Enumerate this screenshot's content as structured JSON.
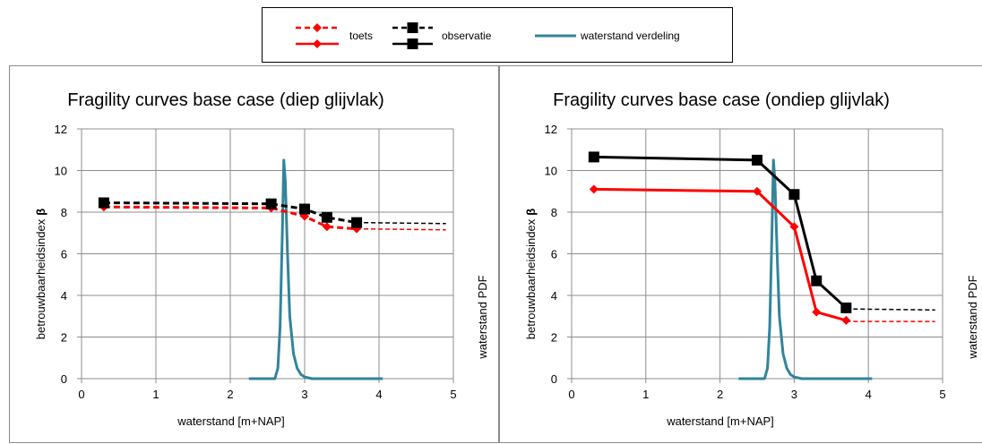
{
  "legend": {
    "items": [
      {
        "label": "toets",
        "color": "#ff0000",
        "marker": "diamond"
      },
      {
        "label": "observatie",
        "color": "#000000",
        "marker": "square"
      },
      {
        "label": "waterstand verdeling",
        "color": "#31849b",
        "marker": "none"
      }
    ]
  },
  "chart_data": [
    {
      "type": "line",
      "title": "Fragility curves base case (diep glijvlak)",
      "xlabel": "waterstand [m+NAP]",
      "ylabel": "betrouwbaarheidsindex",
      "ylabel_symbol": "β",
      "y2label": "waterstand PDF",
      "xlim": [
        0,
        5
      ],
      "ylim": [
        0,
        12
      ],
      "xticks": [
        "0",
        "1",
        "2",
        "3",
        "4",
        "5"
      ],
      "yticks": [
        "0",
        "2",
        "4",
        "6",
        "8",
        "10",
        "12"
      ],
      "grid": true,
      "series": [
        {
          "name": "toets",
          "color": "#ff0000",
          "style": "dashed",
          "marker": "diamond",
          "x": [
            0.3,
            2.55,
            3.0,
            3.3,
            3.7
          ],
          "y": [
            8.25,
            8.2,
            7.8,
            7.3,
            7.2
          ],
          "extension": {
            "x": [
              3.7,
              4.9
            ],
            "y": [
              7.2,
              7.15
            ]
          }
        },
        {
          "name": "observatie",
          "color": "#000000",
          "style": "dashed",
          "marker": "square",
          "x": [
            0.3,
            2.55,
            3.0,
            3.3,
            3.7
          ],
          "y": [
            8.45,
            8.4,
            8.15,
            7.75,
            7.5
          ],
          "extension": {
            "x": [
              3.7,
              4.9
            ],
            "y": [
              7.5,
              7.45
            ]
          }
        },
        {
          "name": "waterstand verdeling",
          "color": "#31849b",
          "style": "solid",
          "marker": "none",
          "x": [
            2.25,
            2.6,
            2.64,
            2.67,
            2.7,
            2.72,
            2.74,
            2.77,
            2.8,
            2.85,
            2.9,
            2.95,
            3.0,
            3.1,
            4.05
          ],
          "y": [
            0,
            0,
            0.5,
            2.5,
            7.0,
            10.5,
            9.5,
            6.0,
            3.0,
            1.2,
            0.5,
            0.2,
            0.08,
            0,
            0
          ]
        }
      ]
    },
    {
      "type": "line",
      "title": "Fragility curves base case (ondiep glijvlak)",
      "xlabel": "waterstand [m+NAP]",
      "ylabel": "betrouwbaarheidsindex",
      "ylabel_symbol": "β",
      "y2label": "waterstand PDF",
      "xlim": [
        0,
        5
      ],
      "ylim": [
        0,
        12
      ],
      "xticks": [
        "0",
        "1",
        "2",
        "3",
        "4",
        "5"
      ],
      "yticks": [
        "0",
        "2",
        "4",
        "6",
        "8",
        "10",
        "12"
      ],
      "grid": true,
      "series": [
        {
          "name": "toets",
          "color": "#ff0000",
          "style": "solid",
          "marker": "diamond",
          "x": [
            0.3,
            2.5,
            3.0,
            3.3,
            3.7
          ],
          "y": [
            9.1,
            9.0,
            7.3,
            3.2,
            2.8
          ],
          "extension": {
            "x": [
              3.7,
              4.9
            ],
            "y": [
              2.75,
              2.75
            ]
          }
        },
        {
          "name": "observatie",
          "color": "#000000",
          "style": "solid",
          "marker": "square",
          "x": [
            0.3,
            2.5,
            3.0,
            3.3,
            3.7
          ],
          "y": [
            10.65,
            10.5,
            8.85,
            4.7,
            3.4
          ],
          "extension": {
            "x": [
              3.7,
              4.9
            ],
            "y": [
              3.35,
              3.3
            ]
          }
        },
        {
          "name": "waterstand verdeling",
          "color": "#31849b",
          "style": "solid",
          "marker": "none",
          "x": [
            2.25,
            2.6,
            2.64,
            2.67,
            2.7,
            2.72,
            2.74,
            2.77,
            2.8,
            2.85,
            2.9,
            2.95,
            3.0,
            3.1,
            4.05
          ],
          "y": [
            0,
            0,
            0.5,
            2.5,
            7.0,
            10.5,
            9.5,
            6.0,
            3.0,
            1.2,
            0.5,
            0.2,
            0.08,
            0,
            0
          ]
        }
      ]
    }
  ]
}
